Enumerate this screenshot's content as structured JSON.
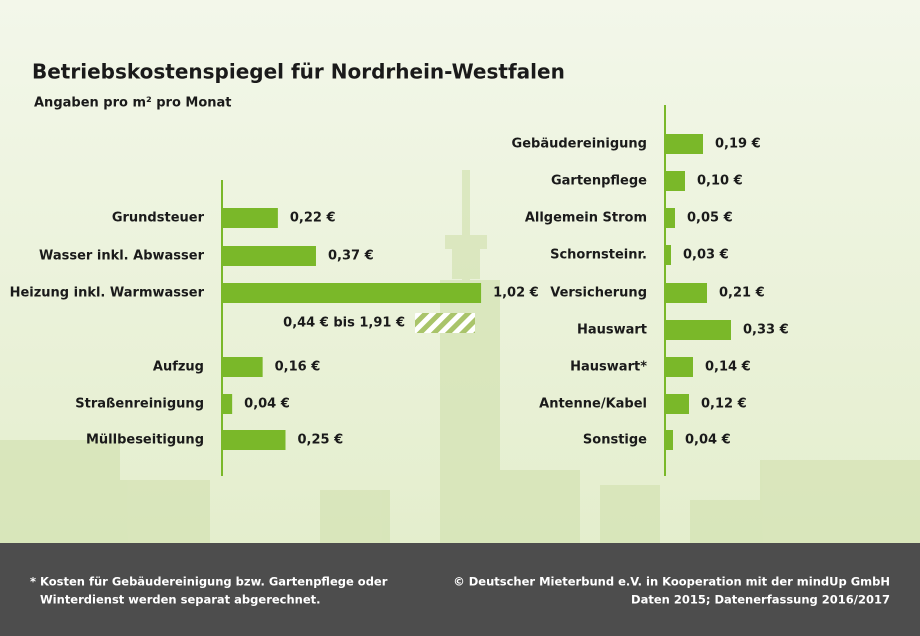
{
  "title": "Betriebskostenspiegel für Nordrhein-Westfalen",
  "subtitle": "Angaben pro m² pro Monat",
  "footnote": [
    "* Kosten für Gebäudereinigung bzw. Gartenpflege oder",
    "Winterdienst werden separat abgerechnet."
  ],
  "source": [
    "© Deutscher Mieterbund e.V. in Kooperation mit der mindUp GmbH",
    "Daten 2015; Datenerfassung 2016/2017"
  ],
  "chart_data": [
    {
      "type": "bar",
      "orientation": "horizontal",
      "color": "#7ab829",
      "categories": [
        "Grundsteuer",
        "Wasser inkl. Abwasser",
        "Heizung inkl. Warmwasser",
        "Aufzug",
        "Straßenreinigung",
        "Müllbeseitigung"
      ],
      "values": [
        0.22,
        0.37,
        1.02,
        0.16,
        0.04,
        0.25
      ],
      "value_labels": [
        "0,22 €",
        "0,37 €",
        "1,02 €",
        "0,16 €",
        "0,04 €",
        "0,25 €"
      ],
      "annotation": "0,44 € bis 1,91 €"
    },
    {
      "type": "bar",
      "orientation": "horizontal",
      "color": "#7ab829",
      "categories": [
        "Gebäudereinigung",
        "Gartenpflege",
        "Allgemein Strom",
        "Schornsteinr.",
        "Versicherung",
        "Hauswart",
        "Hauswart*",
        "Antenne/Kabel",
        "Sonstige"
      ],
      "values": [
        0.19,
        0.1,
        0.05,
        0.03,
        0.21,
        0.33,
        0.14,
        0.12,
        0.04
      ],
      "value_labels": [
        "0,19 €",
        "0,10 €",
        "0,05 €",
        "0,03 €",
        "0,21 €",
        "0,33 €",
        "0,14 €",
        "0,12 €",
        "0,04 €"
      ]
    }
  ]
}
